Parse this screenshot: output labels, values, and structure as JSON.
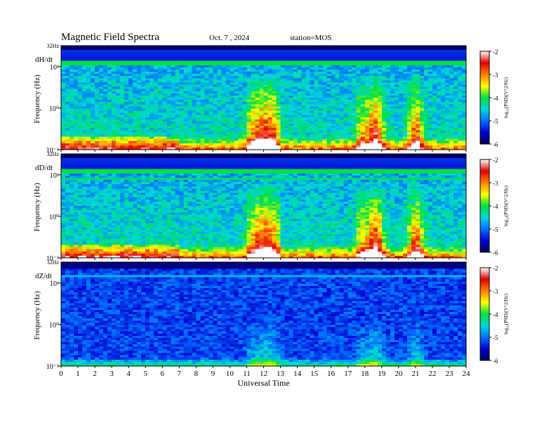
{
  "header": {
    "title": "Magnetic  Field  Spectra",
    "date": "Oct. 7  , 2024",
    "station": "station=MOS"
  },
  "chart_data": [
    {
      "type": "heatmap",
      "panel_label": "dH/dt",
      "ylabel": "Frequency  (Hz)",
      "top_label": "32Hz",
      "y_ticks": [
        "10¹",
        "10⁰",
        "10⁻¹"
      ],
      "xlabel": "",
      "x_range": [
        0,
        24
      ],
      "y_range_hz": [
        0.1,
        32
      ],
      "y_scale": "log",
      "z_label": "log₁₀(PSD)(V^2/Hz)",
      "z_range": [
        -6,
        -2
      ],
      "z_ticks": [
        "-2",
        "-3",
        "-4",
        "-5",
        "-6"
      ],
      "colorscale": [
        "#00005a",
        "#0000d0",
        "#0070ff",
        "#00d8d8",
        "#00e040",
        "#ffff00",
        "#ff8000",
        "#e00000",
        "#ffffff"
      ]
    },
    {
      "type": "heatmap",
      "panel_label": "dD/dt",
      "ylabel": "Frequency  (Hz)",
      "top_label": "32Hz",
      "y_ticks": [
        "10¹",
        "10⁰",
        "10⁻¹"
      ],
      "xlabel": "",
      "x_range": [
        0,
        24
      ],
      "y_range_hz": [
        0.1,
        32
      ],
      "y_scale": "log",
      "z_label": "log₁₀(PSD)(V^2/Hz)",
      "z_range": [
        -6,
        -2
      ],
      "z_ticks": [
        "-2",
        "-3",
        "-4",
        "-5",
        "-6"
      ],
      "colorscale": [
        "#00005a",
        "#0000d0",
        "#0070ff",
        "#00d8d8",
        "#00e040",
        "#ffff00",
        "#ff8000",
        "#e00000",
        "#ffffff"
      ]
    },
    {
      "type": "heatmap",
      "panel_label": "dZ/dt",
      "ylabel": "Frequency  (Hz)",
      "top_label": "32Hz",
      "y_ticks": [
        "10¹",
        "10⁰",
        "10⁻¹"
      ],
      "xlabel": "Universal  Time",
      "x_ticks": [
        "0",
        "1",
        "2",
        "3",
        "4",
        "5",
        "6",
        "7",
        "8",
        "9",
        "10",
        "11",
        "12",
        "13",
        "14",
        "15",
        "16",
        "17",
        "18",
        "19",
        "20",
        "21",
        "22",
        "23",
        "24"
      ],
      "x_range": [
        0,
        24
      ],
      "y_range_hz": [
        0.1,
        32
      ],
      "y_scale": "log",
      "z_label": "log₁₀(PSD)(V^2/Hz)",
      "z_range": [
        -6,
        -2
      ],
      "z_ticks": [
        "-2",
        "-3",
        "-4",
        "-5",
        "-6"
      ],
      "colorscale": [
        "#00005a",
        "#0000d0",
        "#0070ff",
        "#00d8d8",
        "#00e040",
        "#ffff00",
        "#ff8000",
        "#e00000",
        "#ffffff"
      ]
    }
  ]
}
